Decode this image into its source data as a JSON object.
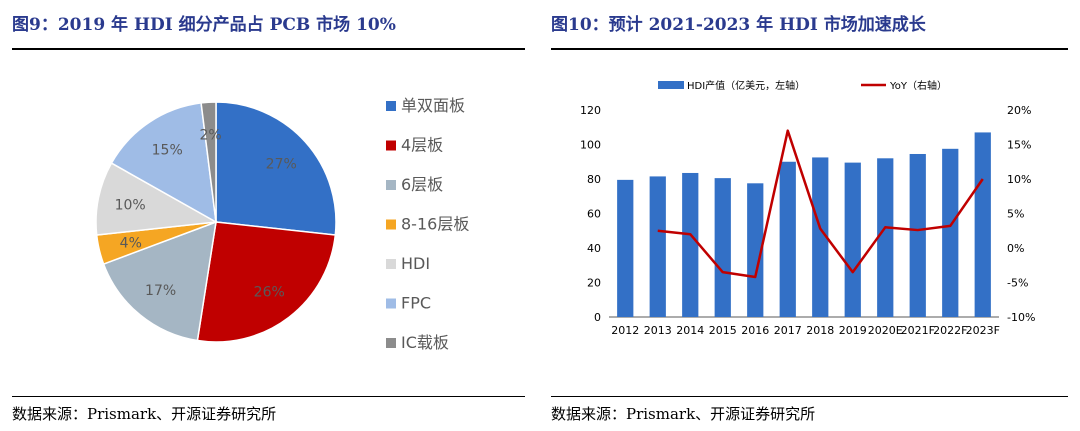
{
  "left": {
    "title": "图9：2019 年 HDI 细分产品占 PCB 市场 10%",
    "source": "数据来源：Prismark、开源证券研究所",
    "chart_data": {
      "type": "pie",
      "title": "",
      "slices": [
        {
          "name": "单双面板",
          "value": 27,
          "label": "27%",
          "color": "#3370c6"
        },
        {
          "name": "4层板",
          "value": 26,
          "label": "26%",
          "color": "#c00000"
        },
        {
          "name": "6层板",
          "value": 17,
          "label": "17%",
          "color": "#a5b6c4"
        },
        {
          "name": "8-16层板",
          "value": 4,
          "label": "4%",
          "color": "#f5a623"
        },
        {
          "name": "HDI",
          "value": 10,
          "label": "10%",
          "color": "#d9d9d9"
        },
        {
          "name": "FPC",
          "value": 15,
          "label": "15%",
          "color": "#9fbce6"
        },
        {
          "name": "IC载板",
          "value": 2,
          "label": "2%",
          "color": "#8c8c8c"
        }
      ],
      "legend_position": "right"
    }
  },
  "right": {
    "title": "图10：预计 2021-2023 年 HDI 市场加速成长",
    "source": "数据来源：Prismark、开源证券研究所",
    "chart_data": {
      "type": "bar+line",
      "title": "",
      "categories": [
        "2012",
        "2013",
        "2014",
        "2015",
        "2016",
        "2017",
        "2018",
        "2019",
        "2020E",
        "2021F",
        "2022F",
        "2023F"
      ],
      "series": [
        {
          "name": "HDI产值（亿美元，左轴）",
          "type": "bar",
          "axis": "left",
          "color": "#3370c6",
          "values": [
            79.5,
            81.5,
            83.5,
            80.5,
            77.5,
            90,
            92.5,
            89.5,
            92,
            94.5,
            97.5,
            107
          ]
        },
        {
          "name": "YoY（右轴）",
          "type": "line",
          "axis": "right",
          "color": "#c00000",
          "values": [
            null,
            2.5,
            2.0,
            -3.5,
            -4.2,
            17.0,
            2.8,
            -3.5,
            3.0,
            2.6,
            3.2,
            10.0
          ]
        }
      ],
      "ylim_left": [
        0,
        120
      ],
      "yticks_left": [
        "0",
        "20",
        "40",
        "60",
        "80",
        "100",
        "120"
      ],
      "ylim_right": [
        -10,
        20
      ],
      "yticks_right": [
        "-10%",
        "-5%",
        "0%",
        "5%",
        "10%",
        "15%",
        "20%"
      ],
      "legend_position": "top",
      "grid": false
    }
  }
}
